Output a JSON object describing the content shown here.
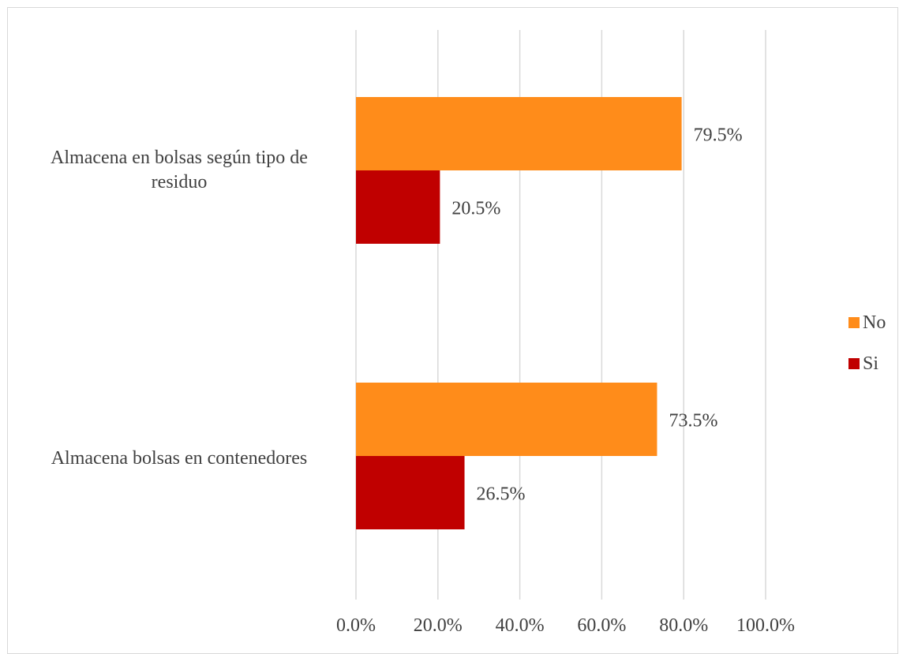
{
  "chart_data": {
    "type": "bar",
    "orientation": "horizontal",
    "categories": [
      "Almacena en bolsas según tipo de residuo",
      "Almacena bolsas en contenedores"
    ],
    "series": [
      {
        "name": "No",
        "values": [
          79.5,
          73.5
        ],
        "color": "#ff8c1a"
      },
      {
        "name": "Si",
        "values": [
          20.5,
          26.5
        ],
        "color": "#c00000"
      }
    ],
    "data_labels": {
      "No": [
        "79.5%",
        "73.5%"
      ],
      "Si": [
        "20.5%",
        "26.5%"
      ]
    },
    "xlim": [
      0,
      100
    ],
    "x_ticks": [
      "0.0%",
      "20.0%",
      "40.0%",
      "60.0%",
      "80.0%",
      "100.0%"
    ],
    "grid": "vertical",
    "legend_position": "right"
  },
  "labels": {
    "category_1_line1": "Almacena en bolsas según tipo de",
    "category_1_line2": "residuo",
    "category_2": "Almacena bolsas en contenedores"
  },
  "legend": [
    {
      "label": "No",
      "color": "#ff8c1a"
    },
    {
      "label": "Si",
      "color": "#c00000"
    }
  ]
}
